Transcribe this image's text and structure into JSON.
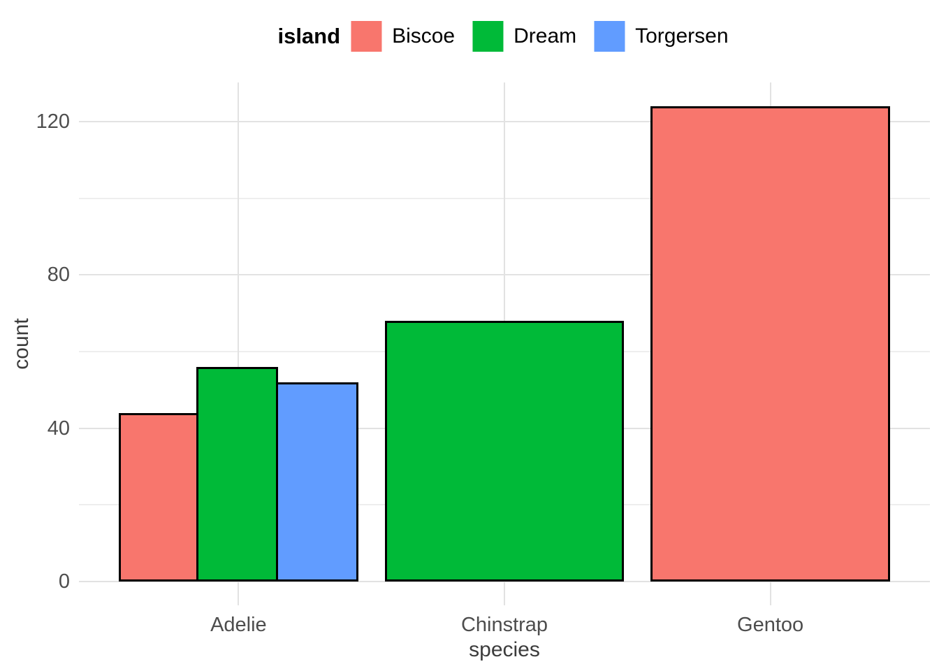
{
  "chart_data": {
    "type": "bar",
    "title": "",
    "xlabel": "species",
    "ylabel": "count",
    "categories": [
      "Adelie",
      "Chinstrap",
      "Gentoo"
    ],
    "series_label": "island",
    "legend": {
      "title": "island",
      "position": "top",
      "entries": [
        {
          "label": "Biscoe",
          "color": "#F8766D"
        },
        {
          "label": "Dream",
          "color": "#00BA38"
        },
        {
          "label": "Torgersen",
          "color": "#619CFF"
        }
      ]
    },
    "bars": [
      {
        "species": "Adelie",
        "island": "Biscoe",
        "value": 44
      },
      {
        "species": "Adelie",
        "island": "Dream",
        "value": 56
      },
      {
        "species": "Adelie",
        "island": "Torgersen",
        "value": 52
      },
      {
        "species": "Chinstrap",
        "island": "Dream",
        "value": 68
      },
      {
        "species": "Gentoo",
        "island": "Biscoe",
        "value": 124
      }
    ],
    "y_ticks": [
      0,
      40,
      80,
      120
    ],
    "y_minor_ticks": [
      20,
      60,
      100
    ],
    "ylim": [
      -6.2,
      130.2
    ],
    "grid": true,
    "bar_outline_color": "#000000",
    "colors": {
      "Biscoe": "#F8766D",
      "Dream": "#00BA38",
      "Torgersen": "#619CFF"
    }
  }
}
